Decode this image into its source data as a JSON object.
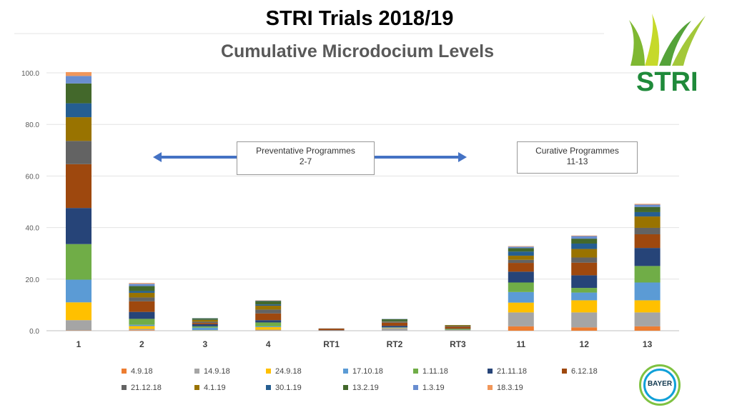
{
  "header": {
    "title": "STRI Trials 2018/19"
  },
  "logos": {
    "stri": "STRI",
    "bayer": "BAYER"
  },
  "annotations": {
    "preventative": [
      "Preventative Programmes",
      "2-7"
    ],
    "curative": [
      "Curative Programmes",
      "11-13"
    ]
  },
  "chart_data": {
    "type": "bar",
    "stacked": true,
    "title": "Cumulative Microdocium Levels",
    "xlabel": "",
    "ylabel": "",
    "ylim": [
      0,
      100
    ],
    "yticks": [
      "0.0",
      "20.0",
      "40.0",
      "60.0",
      "80.0",
      "100.0"
    ],
    "grid": true,
    "legend_position": "bottom",
    "categories": [
      "1",
      "2",
      "3",
      "4",
      "RT1",
      "RT2",
      "RT3",
      "11",
      "12",
      "13"
    ],
    "series": [
      {
        "name": "4.9.18",
        "color": "#ED7D31",
        "values": [
          0.1,
          0.2,
          0,
          0.1,
          0,
          0,
          0,
          1.7,
          1.3,
          1.7
        ]
      },
      {
        "name": "14.9.18",
        "color": "#A5A5A5",
        "values": [
          4.0,
          0.5,
          0.1,
          0.3,
          0.1,
          1.0,
          0.4,
          5.4,
          5.8,
          5.4
        ]
      },
      {
        "name": "24.9.18",
        "color": "#FFC000",
        "values": [
          6.9,
          1.1,
          0.1,
          1.0,
          0,
          0.1,
          0,
          3.8,
          4.7,
          4.7
        ]
      },
      {
        "name": "17.10.18",
        "color": "#5B9BD5",
        "values": [
          8.8,
          0.5,
          1.0,
          0.3,
          0,
          0.1,
          0,
          4.1,
          3.0,
          6.9
        ]
      },
      {
        "name": "1.11.18",
        "color": "#70AD47",
        "values": [
          13.8,
          2.3,
          0.5,
          1.5,
          0,
          0.1,
          0.3,
          3.7,
          1.8,
          6.4
        ]
      },
      {
        "name": "21.11.18",
        "color": "#264478",
        "values": [
          14.0,
          2.7,
          0.8,
          0.9,
          0.1,
          0.6,
          0.1,
          4.2,
          4.9,
          7.0
        ]
      },
      {
        "name": "6.12.18",
        "color": "#9E480E",
        "values": [
          17.0,
          4.1,
          0.5,
          2.6,
          0.6,
          1.2,
          0.7,
          3.4,
          4.9,
          5.3
        ]
      },
      {
        "name": "21.12.18",
        "color": "#636363",
        "values": [
          9.0,
          1.5,
          0.5,
          1.5,
          0.1,
          0.4,
          0.3,
          1.2,
          2.0,
          2.5
        ]
      },
      {
        "name": "4.1.19",
        "color": "#997300",
        "values": [
          9.2,
          1.8,
          0.7,
          1.5,
          0,
          0.1,
          0.3,
          1.6,
          3.3,
          4.4
        ]
      },
      {
        "name": "30.1.19",
        "color": "#255E91",
        "values": [
          5.4,
          0.7,
          0.1,
          0.5,
          0,
          0.1,
          0,
          1.6,
          2.1,
          1.7
        ]
      },
      {
        "name": "13.2.19",
        "color": "#43682B",
        "values": [
          7.7,
          1.9,
          0.5,
          1.3,
          0,
          0.8,
          0.1,
          1.3,
          1.9,
          2.0
        ]
      },
      {
        "name": "1.3.19",
        "color": "#698ED0",
        "values": [
          2.9,
          0.9,
          0.1,
          0.2,
          0,
          0.1,
          0,
          0.6,
          1.0,
          0.9
        ]
      },
      {
        "name": "18.3.19",
        "color": "#F1975A",
        "values": [
          1.5,
          0.3,
          0,
          0.1,
          0,
          0,
          0,
          0.2,
          0.2,
          0.3
        ]
      }
    ]
  }
}
